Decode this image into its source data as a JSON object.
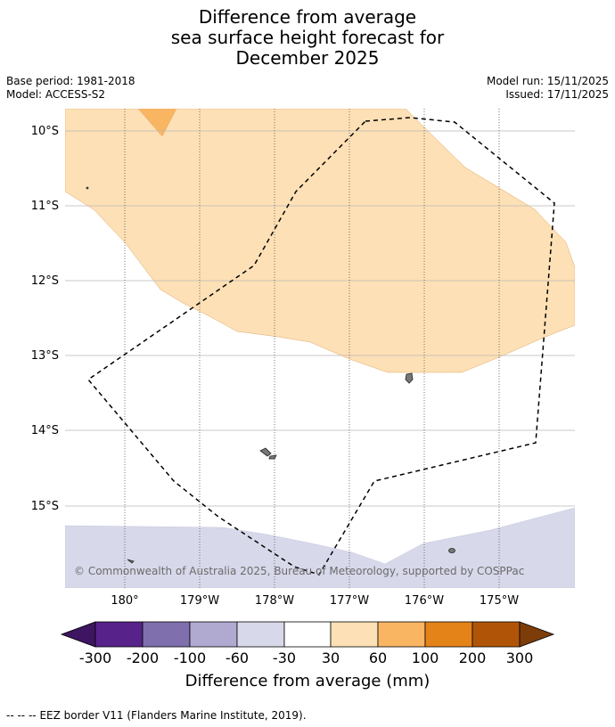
{
  "title": {
    "line1": "Difference from average",
    "line2": "sea surface height forecast for",
    "line3": "December 2025"
  },
  "meta": {
    "base_period": "Base period: 1981-2018",
    "model": "Model: ACCESS-S2",
    "model_run": "Model run: 15/11/2025",
    "issued": "Issued: 17/11/2025"
  },
  "map": {
    "lat_labels": [
      "10°S",
      "11°S",
      "12°S",
      "13°S",
      "14°S",
      "15°S"
    ],
    "lon_labels": [
      "180°",
      "179°W",
      "178°W",
      "177°W",
      "176°W",
      "175°W"
    ],
    "copyright": "© Commonwealth of Australia 2025, Bureau of Meteorology, supported by COSPPac"
  },
  "legend": {
    "label": "Difference from average (mm)",
    "ticks": [
      "-300",
      "-200",
      "-100",
      "-60",
      "-30",
      "30",
      "60",
      "100",
      "200",
      "300"
    ],
    "colors": [
      "#3d1561",
      "#57228a",
      "#7f70ad",
      "#b0a9d0",
      "#d7d8ea",
      "#ffffff",
      "#fde0b5",
      "#fab563",
      "#e48318",
      "#b05507",
      "#7d3d09"
    ]
  },
  "footer": {
    "dash_symbol": "--  --  --",
    "eez_note": "EEZ border V11 (Flanders Marine Institute, 2019)."
  }
}
